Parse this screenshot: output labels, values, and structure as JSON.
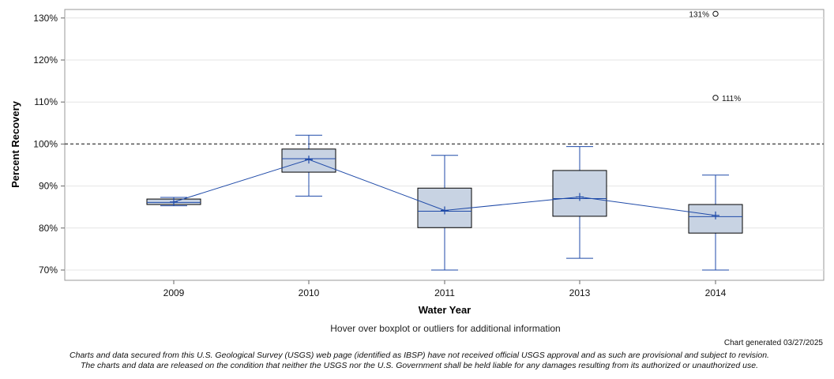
{
  "chart_data": {
    "type": "boxplot",
    "title": "",
    "xlabel": "Water Year",
    "ylabel": "Percent Recovery",
    "ylim": [
      68,
      132
    ],
    "y_ticks": [
      "70%",
      "80%",
      "90%",
      "100%",
      "110%",
      "120%",
      "130%"
    ],
    "y_tick_values": [
      70,
      80,
      90,
      100,
      110,
      120,
      130
    ],
    "reference_line": 100,
    "grid": true,
    "categories": [
      "2009",
      "2010",
      "2011",
      "2013",
      "2014"
    ],
    "boxes": [
      {
        "category": "2009",
        "min": 85.3,
        "q1": 85.6,
        "median": 86.1,
        "q3": 86.9,
        "max": 87.3,
        "mean": 86.2,
        "outliers": []
      },
      {
        "category": "2010",
        "min": 87.6,
        "q1": 93.3,
        "median": 96.5,
        "q3": 98.8,
        "max": 102.1,
        "mean": 96.3,
        "outliers": []
      },
      {
        "category": "2011",
        "min": 70.0,
        "q1": 80.1,
        "median": 84.0,
        "q3": 89.5,
        "max": 97.3,
        "mean": 84.2,
        "outliers": []
      },
      {
        "category": "2013",
        "min": 72.8,
        "q1": 82.8,
        "median": 87.0,
        "q3": 93.7,
        "max": 99.4,
        "mean": 87.4,
        "outliers": []
      },
      {
        "category": "2014",
        "min": 70.0,
        "q1": 78.8,
        "median": 82.7,
        "q3": 85.6,
        "max": 92.6,
        "mean": 83.0,
        "outliers": [
          {
            "value": 131,
            "label": "131%"
          },
          {
            "value": 111,
            "label": "111%"
          }
        ]
      }
    ]
  },
  "hover_note": "Hover over boxplot or outliers for additional information",
  "generated_text": "Chart generated 03/27/2025",
  "disclaimer_line1": "Charts and data secured from this U.S. Geological Survey (USGS) web page (identified as IBSP) have not received official USGS approval and as such are provisional and subject to revision.",
  "disclaimer_line2": "The charts and data are released on the condition that neither the USGS nor the U.S. Government shall be held liable for any damages resulting from its authorized or unauthorized use.",
  "colors": {
    "box_fill": "#c8d3e3",
    "box_stroke": "#000000",
    "whisker": "#1f4aa8",
    "mean_line": "#1f4aa8",
    "reference": "#555555",
    "grid": "#e4e4e4",
    "frame": "#999999"
  }
}
